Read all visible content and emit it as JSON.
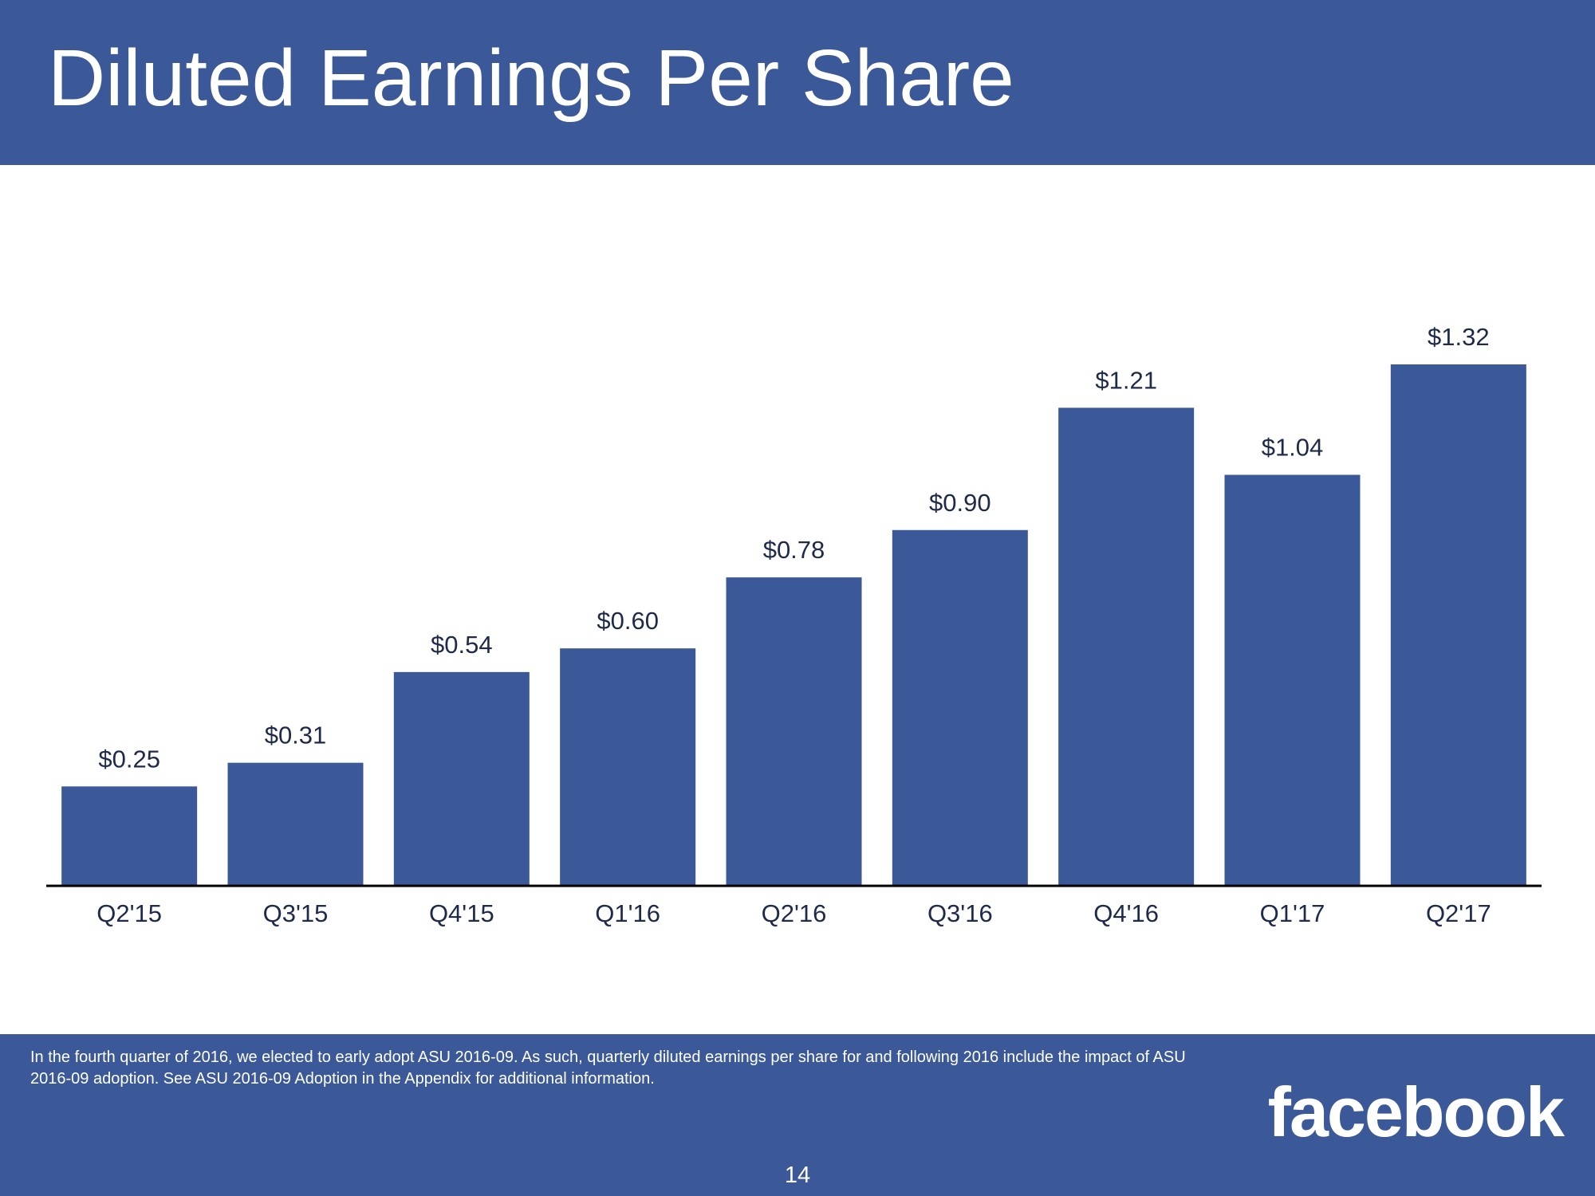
{
  "slide": {
    "title": "Diluted Earnings Per Share",
    "footnote": "In the fourth quarter of 2016, we elected to early adopt ASU 2016-09. As such, quarterly diluted earnings per share for and following 2016 include the impact of ASU 2016-09 adoption. See ASU 2016-09 Adoption in the Appendix for additional information.",
    "page_number": "14",
    "brand": "facebook"
  },
  "colors": {
    "brand": "#3b5998",
    "label_text": "#1d2a4a",
    "axis": "#000000"
  },
  "chart_data": {
    "type": "bar",
    "title": "Diluted Earnings Per Share",
    "xlabel": "",
    "ylabel": "",
    "categories": [
      "Q2'15",
      "Q3'15",
      "Q4'15",
      "Q1'16",
      "Q2'16",
      "Q3'16",
      "Q4'16",
      "Q1'17",
      "Q2'17"
    ],
    "values": [
      0.25,
      0.31,
      0.54,
      0.6,
      0.78,
      0.9,
      1.21,
      1.04,
      1.32
    ],
    "value_labels": [
      "$0.25",
      "$0.31",
      "$0.54",
      "$0.60",
      "$0.78",
      "$0.90",
      "$1.21",
      "$1.04",
      "$1.32"
    ],
    "ylim": [
      0,
      1.32
    ],
    "grid": false,
    "legend": "none"
  }
}
